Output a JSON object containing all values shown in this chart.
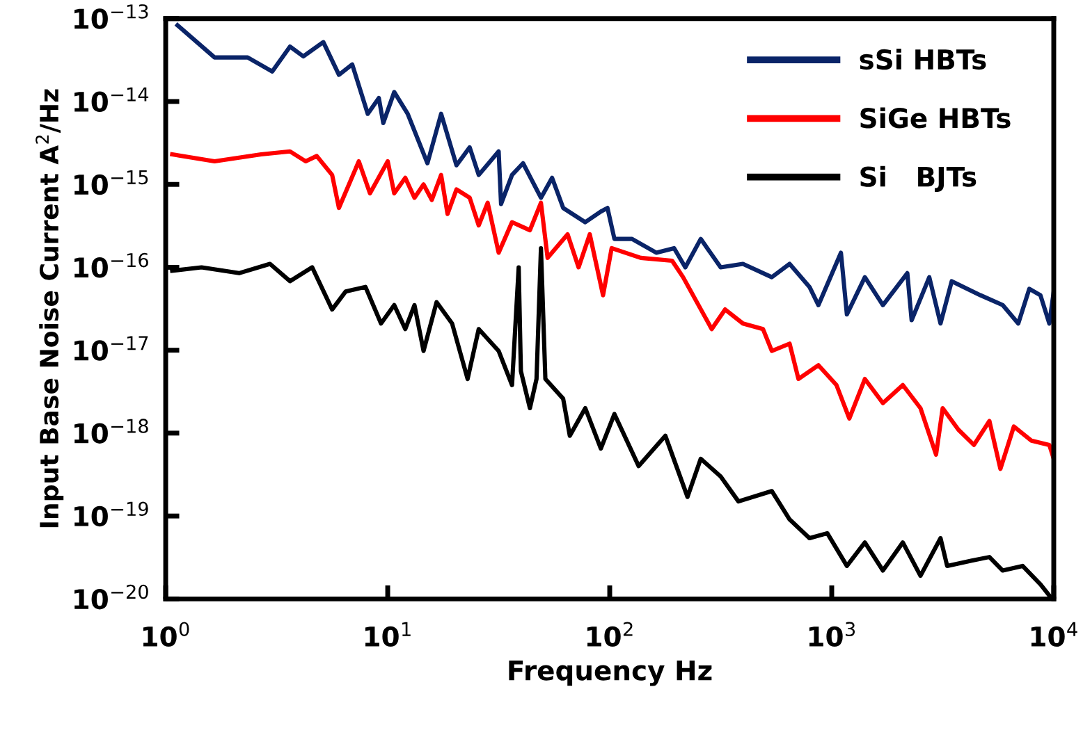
{
  "chart_data": {
    "type": "line",
    "xlabel": "Frequency Hz",
    "ylabel": "Input Base Noise Current A$^{2}$/Hz",
    "log": "xy",
    "grid": false,
    "legend": "top right",
    "marker": "none",
    "line_style": "solid",
    "xlim": [
      1,
      10000
    ],
    "ylim": [
      1e-20,
      1e-13
    ],
    "xticks": [
      {
        "value": 1,
        "label": "10$^{0}$"
      },
      {
        "value": 10,
        "label": "10$^{1}$"
      },
      {
        "value": 100,
        "label": "10$^{2}$"
      },
      {
        "value": 1000,
        "label": "10$^{3}$"
      },
      {
        "value": 10000,
        "label": "10$^{4}$"
      }
    ],
    "yticks": [
      {
        "value": 1e-20,
        "label": "10$^{−20}$"
      },
      {
        "value": 1e-19,
        "label": "10$^{−19}$"
      },
      {
        "value": 1e-18,
        "label": "10$^{−18}$"
      },
      {
        "value": 1e-17,
        "label": "10$^{−17}$"
      },
      {
        "value": 1e-16,
        "label": "10$^{−16}$"
      },
      {
        "value": 1e-15,
        "label": "10$^{−15}$"
      },
      {
        "value": 1e-14,
        "label": "10$^{−14}$"
      },
      {
        "value": 1e-13,
        "label": "10$^{−13}$"
      }
    ],
    "series": [
      {
        "name": "sSi HBTs",
        "color": "#0a2468",
        "x": [
          1.13,
          1.66,
          2.34,
          3.02,
          3.63,
          4.17,
          5.13,
          6.03,
          6.92,
          8.13,
          9.12,
          9.55,
          10.7,
          12.3,
          15.1,
          17.4,
          20.4,
          23.4,
          25.7,
          31.6,
          32.4,
          36.3,
          40.7,
          49,
          55,
          61.7,
          77.6,
          91.2,
          97.7,
          105,
          126,
          162,
          195,
          219,
          257,
          316,
          398,
          537,
          646,
          794,
          871,
          1100,
          1170,
          1410,
          1700,
          2190,
          2290,
          2750,
          3090,
          3470,
          4680,
          5890,
          6920,
          7760,
          8710,
          9550,
          10000
        ],
        "values": [
          8.3e-14,
          3.4e-14,
          3.4e-14,
          2.3e-14,
          4.6e-14,
          3.5e-14,
          5.2e-14,
          2.1e-14,
          2.8e-14,
          7.1e-15,
          1.1e-14,
          5.5e-15,
          1.3e-14,
          7.1e-15,
          1.8e-15,
          7.1e-15,
          1.7e-15,
          2.8e-15,
          1.3e-15,
          2.5e-15,
          5.8e-16,
          1.3e-15,
          1.8e-15,
          6.9e-16,
          1.2e-15,
          5.2e-16,
          3.5e-16,
          4.7e-16,
          5.2e-16,
          2.2e-16,
          2.2e-16,
          1.5e-16,
          1.7e-16,
          1e-16,
          2.2e-16,
          1e-16,
          1.1e-16,
          7.6e-17,
          1.1e-16,
          5.8e-17,
          3.5e-17,
          1.5e-16,
          2.7e-17,
          7.6e-17,
          3.5e-17,
          8.5e-17,
          2.3e-17,
          7.6e-17,
          2.1e-17,
          6.8e-17,
          4.6e-17,
          3.5e-17,
          2.1e-17,
          5.5e-17,
          4.6e-17,
          2.1e-17,
          5.1e-17
        ]
      },
      {
        "name": "SiGe HBTs",
        "color": "#ff0000",
        "x": [
          1.07,
          1.66,
          2.69,
          3.63,
          4.27,
          4.79,
          5.62,
          6.03,
          7.41,
          8.32,
          10,
          10.7,
          12,
          13.2,
          14.5,
          15.8,
          17.4,
          18.6,
          20.4,
          23.4,
          25.7,
          28.2,
          31.6,
          36.3,
          43.7,
          49,
          52.5,
          64.6,
          72.4,
          81.3,
          93.3,
          102,
          138,
          191,
          214,
          288,
          331,
          398,
          490,
          537,
          646,
          708,
          871,
          1050,
          1200,
          1410,
          1700,
          2090,
          2510,
          2950,
          3160,
          3720,
          4370,
          5130,
          5750,
          6610,
          7940,
          9550,
          10000
        ],
        "values": [
          2.3e-15,
          1.9e-15,
          2.3e-15,
          2.5e-15,
          1.9e-15,
          2.2e-15,
          1.3e-15,
          5.2e-16,
          1.9e-15,
          7.8e-16,
          1.9e-15,
          7.8e-16,
          1.2e-15,
          6.9e-16,
          1e-15,
          6.5e-16,
          1.3e-15,
          4.4e-16,
          8.7e-16,
          6.9e-16,
          3.2e-16,
          6e-16,
          1.5e-16,
          3.5e-16,
          2.8e-16,
          6e-16,
          1.3e-16,
          2.5e-16,
          1e-16,
          2.5e-16,
          4.6e-17,
          1.7e-16,
          1.3e-16,
          1.2e-16,
          7.6e-17,
          1.8e-17,
          3.1e-17,
          2.1e-17,
          1.8e-17,
          9.8e-18,
          1.2e-17,
          4.5e-18,
          6.6e-18,
          3.8e-18,
          1.5e-18,
          4.5e-18,
          2.3e-18,
          3.8e-18,
          2e-18,
          5.5e-19,
          2e-18,
          1.1e-18,
          7.2e-19,
          1.4e-18,
          3.7e-19,
          1.2e-18,
          8.1e-19,
          7.2e-19,
          4.9e-19
        ]
      },
      {
        "name": "Si   BJTs",
        "color": "#000000",
        "x": [
          1.07,
          1.45,
          2.14,
          2.95,
          3.63,
          4.57,
          5.62,
          6.46,
          7.94,
          9.33,
          10.7,
          12,
          13.2,
          14.5,
          16.6,
          19.5,
          22.9,
          25.7,
          31.6,
          36.3,
          38.9,
          39.8,
          43.7,
          46.8,
          49,
          51.3,
          61.7,
          66.1,
          77.6,
          91.2,
          105,
          135,
          178,
          224,
          257,
          316,
          380,
          537,
          646,
          794,
          955,
          1170,
          1410,
          1700,
          2090,
          2510,
          3090,
          3310,
          4270,
          5130,
          5890,
          7240,
          8710,
          9550
        ],
        "values": [
          9.1e-17,
          1e-16,
          8.5e-17,
          1.1e-16,
          6.8e-17,
          1e-16,
          3.1e-17,
          5.1e-17,
          5.8e-17,
          2.1e-17,
          3.5e-17,
          1.8e-17,
          3.5e-17,
          9.8e-18,
          3.8e-17,
          2.1e-17,
          4.5e-18,
          1.8e-17,
          9.8e-18,
          3.8e-18,
          1e-16,
          5.6e-18,
          2e-18,
          4.5e-18,
          1.7e-16,
          4.5e-18,
          2.6e-18,
          9.3e-19,
          2e-18,
          6.5e-19,
          1.7e-18,
          4e-19,
          9.3e-19,
          1.7e-19,
          4.9e-19,
          3e-19,
          1.5e-19,
          2e-19,
          9.1e-20,
          5.4e-20,
          6.2e-20,
          2.5e-20,
          4.8e-20,
          2.2e-20,
          4.8e-20,
          1.9e-20,
          5.4e-20,
          2.5e-20,
          2.9e-20,
          3.2e-20,
          2.2e-20,
          2.5e-20,
          1.5e-20,
          1.1e-20
        ]
      }
    ]
  }
}
